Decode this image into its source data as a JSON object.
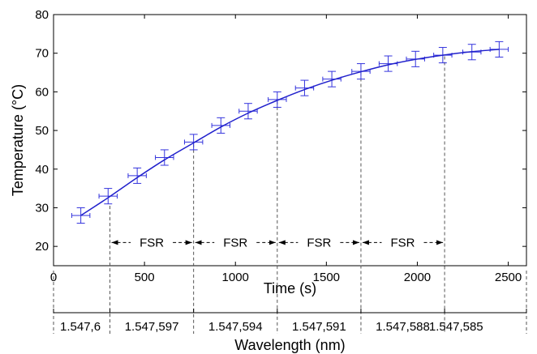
{
  "chart_data": {
    "type": "line",
    "xlabel": "Time (s)",
    "ylabel": "Temperature (°C)",
    "xlim": [
      0,
      2600
    ],
    "ylim": [
      15,
      80
    ],
    "x_ticks": [
      0,
      500,
      1000,
      1500,
      2000,
      2500
    ],
    "y_ticks": [
      20,
      30,
      40,
      50,
      60,
      70,
      80
    ],
    "grid": false,
    "series": [
      {
        "color": "#3333dd",
        "x": [
          150,
          300,
          460,
          610,
          770,
          920,
          1070,
          1230,
          1380,
          1530,
          1690,
          1840,
          1990,
          2140,
          2300,
          2450
        ],
        "y": [
          28.0,
          33.0,
          38.3,
          43.0,
          47.0,
          51.3,
          55.0,
          58.0,
          61.0,
          63.3,
          65.3,
          67.3,
          68.5,
          69.5,
          70.3,
          71.0
        ],
        "y_error": [
          2,
          2,
          2,
          2,
          2,
          2,
          2,
          2,
          2,
          2,
          2,
          2,
          2,
          2,
          2,
          2
        ],
        "x_error": [
          50,
          50,
          50,
          50,
          50,
          50,
          50,
          50,
          50,
          50,
          50,
          50,
          50,
          50,
          50,
          50
        ]
      }
    ],
    "fit_curve": {
      "color": "#2020cc",
      "x": [
        150,
        300,
        460,
        610,
        770,
        920,
        1070,
        1230,
        1380,
        1530,
        1690,
        1840,
        1990,
        2140,
        2300,
        2450
      ],
      "y": [
        28.0,
        32.6,
        37.8,
        42.4,
        46.8,
        50.9,
        54.5,
        57.8,
        60.6,
        63.0,
        65.2,
        67.0,
        68.4,
        69.5,
        70.4,
        71.0
      ]
    },
    "fsr_markers": {
      "x": [
        310,
        770,
        1230,
        1690,
        2150
      ],
      "y": [
        30.5,
        46.5,
        57.6,
        65.0,
        69.2
      ],
      "label": "FSR",
      "label_y": 21
    },
    "secondary_axis": {
      "title": "Wavelength (nm)",
      "tick_x": [
        0,
        310,
        770,
        1230,
        1690,
        2150,
        2600
      ],
      "tick_labels": [
        {
          "x": 0,
          "text": "1.547,6"
        },
        {
          "x": 540,
          "text": "1.547,597"
        },
        {
          "x": 1000,
          "text": "1.547,594"
        },
        {
          "x": 1460,
          "text": "1.547,591"
        },
        {
          "x": 1920,
          "text": "1.547,588"
        },
        {
          "x": 2380,
          "text": "1.547,585"
        }
      ]
    }
  }
}
